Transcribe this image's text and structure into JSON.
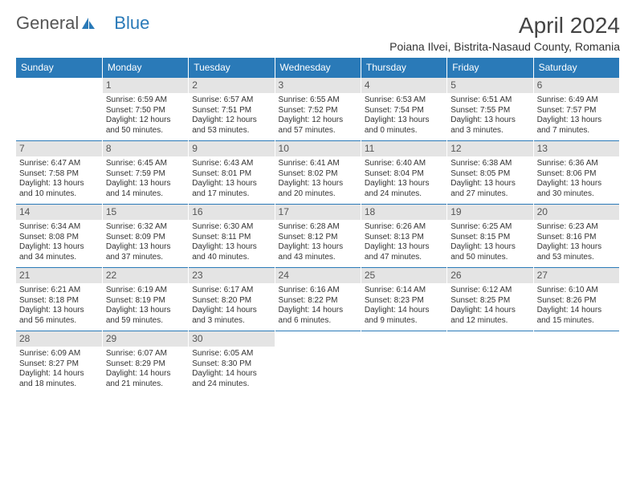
{
  "logo": {
    "text1": "General",
    "text2": "Blue"
  },
  "title": "April 2024",
  "location": "Poiana Ilvei, Bistrita-Nasaud County, Romania",
  "colors": {
    "header_bg": "#2a7ab8",
    "header_text": "#ffffff",
    "daynum_bg": "#e4e4e4",
    "body_text": "#333333",
    "page_bg": "#ffffff"
  },
  "fonts": {
    "title_size": 28,
    "location_size": 14,
    "th_size": 12,
    "cell_size": 10
  },
  "weekdays": [
    "Sunday",
    "Monday",
    "Tuesday",
    "Wednesday",
    "Thursday",
    "Friday",
    "Saturday"
  ],
  "weeks": [
    [
      {
        "n": "",
        "sr": "",
        "ss": "",
        "dl1": "",
        "dl2": ""
      },
      {
        "n": "1",
        "sr": "Sunrise: 6:59 AM",
        "ss": "Sunset: 7:50 PM",
        "dl1": "Daylight: 12 hours",
        "dl2": "and 50 minutes."
      },
      {
        "n": "2",
        "sr": "Sunrise: 6:57 AM",
        "ss": "Sunset: 7:51 PM",
        "dl1": "Daylight: 12 hours",
        "dl2": "and 53 minutes."
      },
      {
        "n": "3",
        "sr": "Sunrise: 6:55 AM",
        "ss": "Sunset: 7:52 PM",
        "dl1": "Daylight: 12 hours",
        "dl2": "and 57 minutes."
      },
      {
        "n": "4",
        "sr": "Sunrise: 6:53 AM",
        "ss": "Sunset: 7:54 PM",
        "dl1": "Daylight: 13 hours",
        "dl2": "and 0 minutes."
      },
      {
        "n": "5",
        "sr": "Sunrise: 6:51 AM",
        "ss": "Sunset: 7:55 PM",
        "dl1": "Daylight: 13 hours",
        "dl2": "and 3 minutes."
      },
      {
        "n": "6",
        "sr": "Sunrise: 6:49 AM",
        "ss": "Sunset: 7:57 PM",
        "dl1": "Daylight: 13 hours",
        "dl2": "and 7 minutes."
      }
    ],
    [
      {
        "n": "7",
        "sr": "Sunrise: 6:47 AM",
        "ss": "Sunset: 7:58 PM",
        "dl1": "Daylight: 13 hours",
        "dl2": "and 10 minutes."
      },
      {
        "n": "8",
        "sr": "Sunrise: 6:45 AM",
        "ss": "Sunset: 7:59 PM",
        "dl1": "Daylight: 13 hours",
        "dl2": "and 14 minutes."
      },
      {
        "n": "9",
        "sr": "Sunrise: 6:43 AM",
        "ss": "Sunset: 8:01 PM",
        "dl1": "Daylight: 13 hours",
        "dl2": "and 17 minutes."
      },
      {
        "n": "10",
        "sr": "Sunrise: 6:41 AM",
        "ss": "Sunset: 8:02 PM",
        "dl1": "Daylight: 13 hours",
        "dl2": "and 20 minutes."
      },
      {
        "n": "11",
        "sr": "Sunrise: 6:40 AM",
        "ss": "Sunset: 8:04 PM",
        "dl1": "Daylight: 13 hours",
        "dl2": "and 24 minutes."
      },
      {
        "n": "12",
        "sr": "Sunrise: 6:38 AM",
        "ss": "Sunset: 8:05 PM",
        "dl1": "Daylight: 13 hours",
        "dl2": "and 27 minutes."
      },
      {
        "n": "13",
        "sr": "Sunrise: 6:36 AM",
        "ss": "Sunset: 8:06 PM",
        "dl1": "Daylight: 13 hours",
        "dl2": "and 30 minutes."
      }
    ],
    [
      {
        "n": "14",
        "sr": "Sunrise: 6:34 AM",
        "ss": "Sunset: 8:08 PM",
        "dl1": "Daylight: 13 hours",
        "dl2": "and 34 minutes."
      },
      {
        "n": "15",
        "sr": "Sunrise: 6:32 AM",
        "ss": "Sunset: 8:09 PM",
        "dl1": "Daylight: 13 hours",
        "dl2": "and 37 minutes."
      },
      {
        "n": "16",
        "sr": "Sunrise: 6:30 AM",
        "ss": "Sunset: 8:11 PM",
        "dl1": "Daylight: 13 hours",
        "dl2": "and 40 minutes."
      },
      {
        "n": "17",
        "sr": "Sunrise: 6:28 AM",
        "ss": "Sunset: 8:12 PM",
        "dl1": "Daylight: 13 hours",
        "dl2": "and 43 minutes."
      },
      {
        "n": "18",
        "sr": "Sunrise: 6:26 AM",
        "ss": "Sunset: 8:13 PM",
        "dl1": "Daylight: 13 hours",
        "dl2": "and 47 minutes."
      },
      {
        "n": "19",
        "sr": "Sunrise: 6:25 AM",
        "ss": "Sunset: 8:15 PM",
        "dl1": "Daylight: 13 hours",
        "dl2": "and 50 minutes."
      },
      {
        "n": "20",
        "sr": "Sunrise: 6:23 AM",
        "ss": "Sunset: 8:16 PM",
        "dl1": "Daylight: 13 hours",
        "dl2": "and 53 minutes."
      }
    ],
    [
      {
        "n": "21",
        "sr": "Sunrise: 6:21 AM",
        "ss": "Sunset: 8:18 PM",
        "dl1": "Daylight: 13 hours",
        "dl2": "and 56 minutes."
      },
      {
        "n": "22",
        "sr": "Sunrise: 6:19 AM",
        "ss": "Sunset: 8:19 PM",
        "dl1": "Daylight: 13 hours",
        "dl2": "and 59 minutes."
      },
      {
        "n": "23",
        "sr": "Sunrise: 6:17 AM",
        "ss": "Sunset: 8:20 PM",
        "dl1": "Daylight: 14 hours",
        "dl2": "and 3 minutes."
      },
      {
        "n": "24",
        "sr": "Sunrise: 6:16 AM",
        "ss": "Sunset: 8:22 PM",
        "dl1": "Daylight: 14 hours",
        "dl2": "and 6 minutes."
      },
      {
        "n": "25",
        "sr": "Sunrise: 6:14 AM",
        "ss": "Sunset: 8:23 PM",
        "dl1": "Daylight: 14 hours",
        "dl2": "and 9 minutes."
      },
      {
        "n": "26",
        "sr": "Sunrise: 6:12 AM",
        "ss": "Sunset: 8:25 PM",
        "dl1": "Daylight: 14 hours",
        "dl2": "and 12 minutes."
      },
      {
        "n": "27",
        "sr": "Sunrise: 6:10 AM",
        "ss": "Sunset: 8:26 PM",
        "dl1": "Daylight: 14 hours",
        "dl2": "and 15 minutes."
      }
    ],
    [
      {
        "n": "28",
        "sr": "Sunrise: 6:09 AM",
        "ss": "Sunset: 8:27 PM",
        "dl1": "Daylight: 14 hours",
        "dl2": "and 18 minutes."
      },
      {
        "n": "29",
        "sr": "Sunrise: 6:07 AM",
        "ss": "Sunset: 8:29 PM",
        "dl1": "Daylight: 14 hours",
        "dl2": "and 21 minutes."
      },
      {
        "n": "30",
        "sr": "Sunrise: 6:05 AM",
        "ss": "Sunset: 8:30 PM",
        "dl1": "Daylight: 14 hours",
        "dl2": "and 24 minutes."
      },
      {
        "n": "",
        "sr": "",
        "ss": "",
        "dl1": "",
        "dl2": ""
      },
      {
        "n": "",
        "sr": "",
        "ss": "",
        "dl1": "",
        "dl2": ""
      },
      {
        "n": "",
        "sr": "",
        "ss": "",
        "dl1": "",
        "dl2": ""
      },
      {
        "n": "",
        "sr": "",
        "ss": "",
        "dl1": "",
        "dl2": ""
      }
    ]
  ]
}
